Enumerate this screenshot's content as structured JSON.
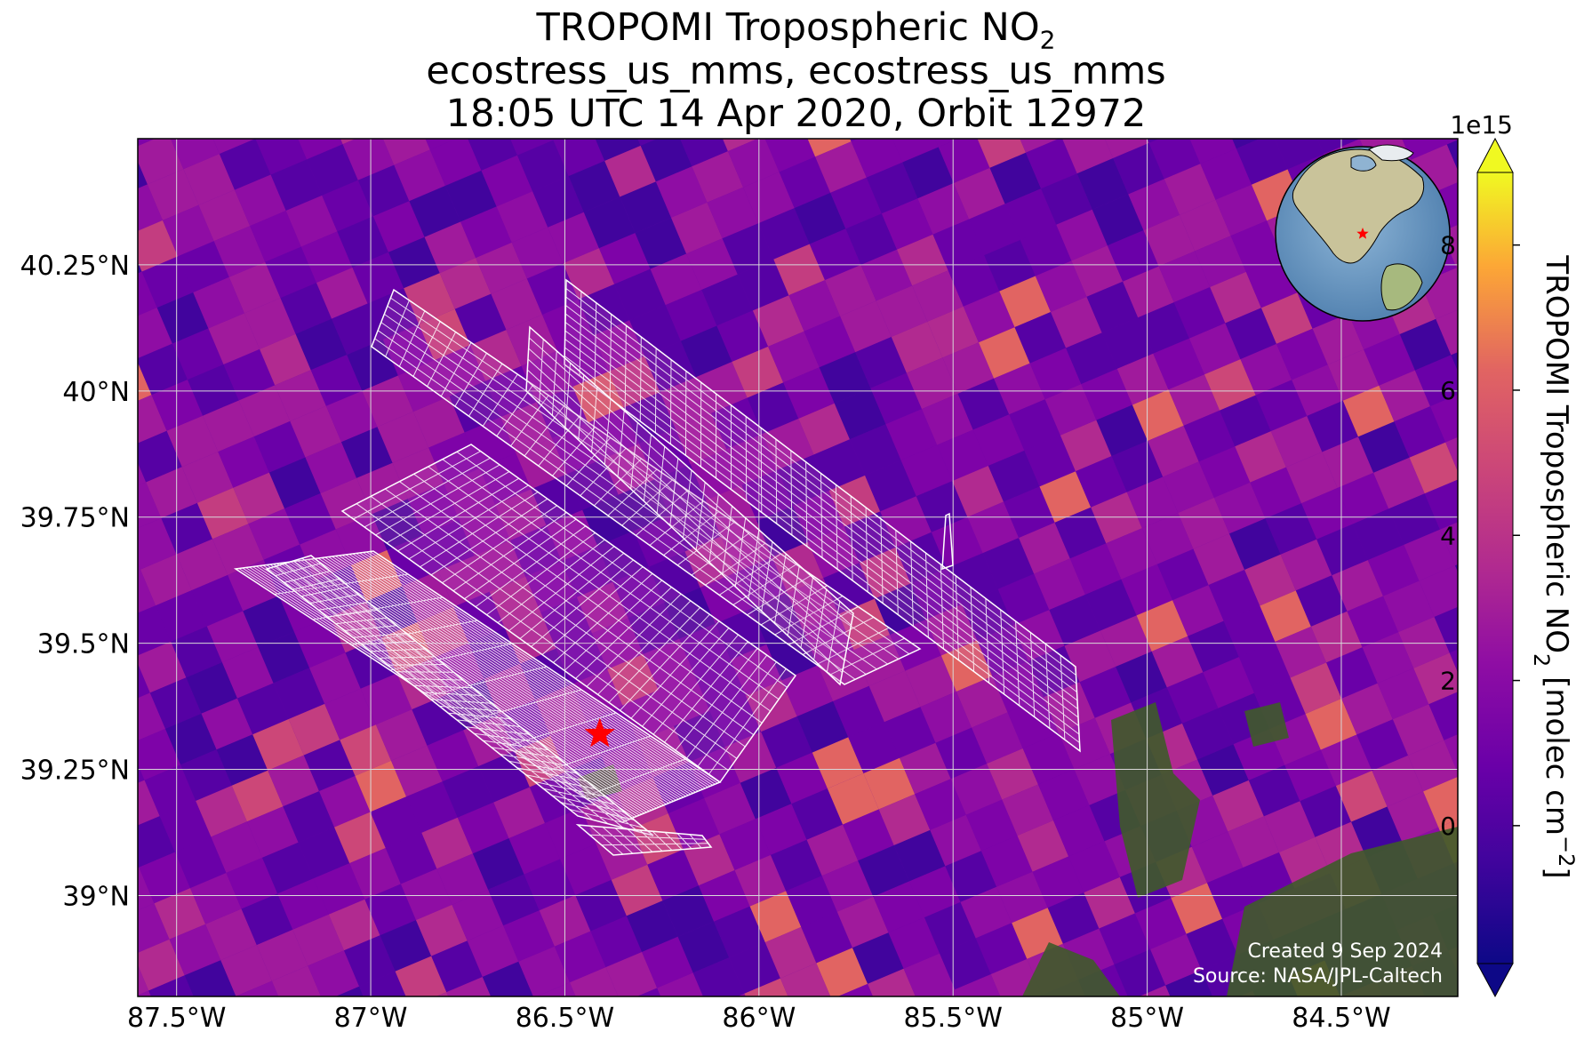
{
  "title": {
    "line1": "TROPOMI Tropospheric NO",
    "line1_sub": "2",
    "line2": "ecostress_us_mms, ecostress_us_mms",
    "line3": "18:05 UTC 14 Apr 2020, Orbit 12972"
  },
  "map": {
    "lon_range": [
      -87.6,
      -84.2
    ],
    "lat_range": [
      38.8,
      40.5
    ],
    "lon_ticks": [
      {
        "value": -87.5,
        "label": "87.5°W"
      },
      {
        "value": -87.0,
        "label": "87°W"
      },
      {
        "value": -86.5,
        "label": "86.5°W"
      },
      {
        "value": -86.0,
        "label": "86°W"
      },
      {
        "value": -85.5,
        "label": "85.5°W"
      },
      {
        "value": -85.0,
        "label": "85°W"
      },
      {
        "value": -84.5,
        "label": "84.5°W"
      }
    ],
    "lat_ticks": [
      {
        "value": 40.25,
        "label": "40.25°N"
      },
      {
        "value": 40.0,
        "label": "40°N"
      },
      {
        "value": 39.75,
        "label": "39.75°N"
      },
      {
        "value": 39.5,
        "label": "39.5°N"
      },
      {
        "value": 39.25,
        "label": "39.25°N"
      },
      {
        "value": 39.0,
        "label": "39°N"
      }
    ],
    "target_marker": {
      "lon": -86.41,
      "lat": 39.32,
      "color": "#ff0000"
    },
    "gridline_color": "#d9d9d9",
    "swath_outline_color": "#ffffff"
  },
  "colorbar": {
    "scale_label": "1e15",
    "label": "TROPOMI Tropospheric NO",
    "label_sub": "2",
    "label_tail": " [molec cm",
    "label_sup": "−2",
    "label_end": "]",
    "range": [
      -1.9,
      9.0
    ],
    "ticks": [
      {
        "value": 0,
        "label": "0"
      },
      {
        "value": 2,
        "label": "2"
      },
      {
        "value": 4,
        "label": "4"
      },
      {
        "value": 6,
        "label": "6"
      },
      {
        "value": 8,
        "label": "8"
      }
    ],
    "extend": "both",
    "colormap": "plasma"
  },
  "inset_globe": {
    "region": "North America",
    "marker_color": "#ff0000"
  },
  "credits": {
    "created": "Created 9 Sep 2024",
    "source": "Source: NASA/JPL-Caltech"
  }
}
